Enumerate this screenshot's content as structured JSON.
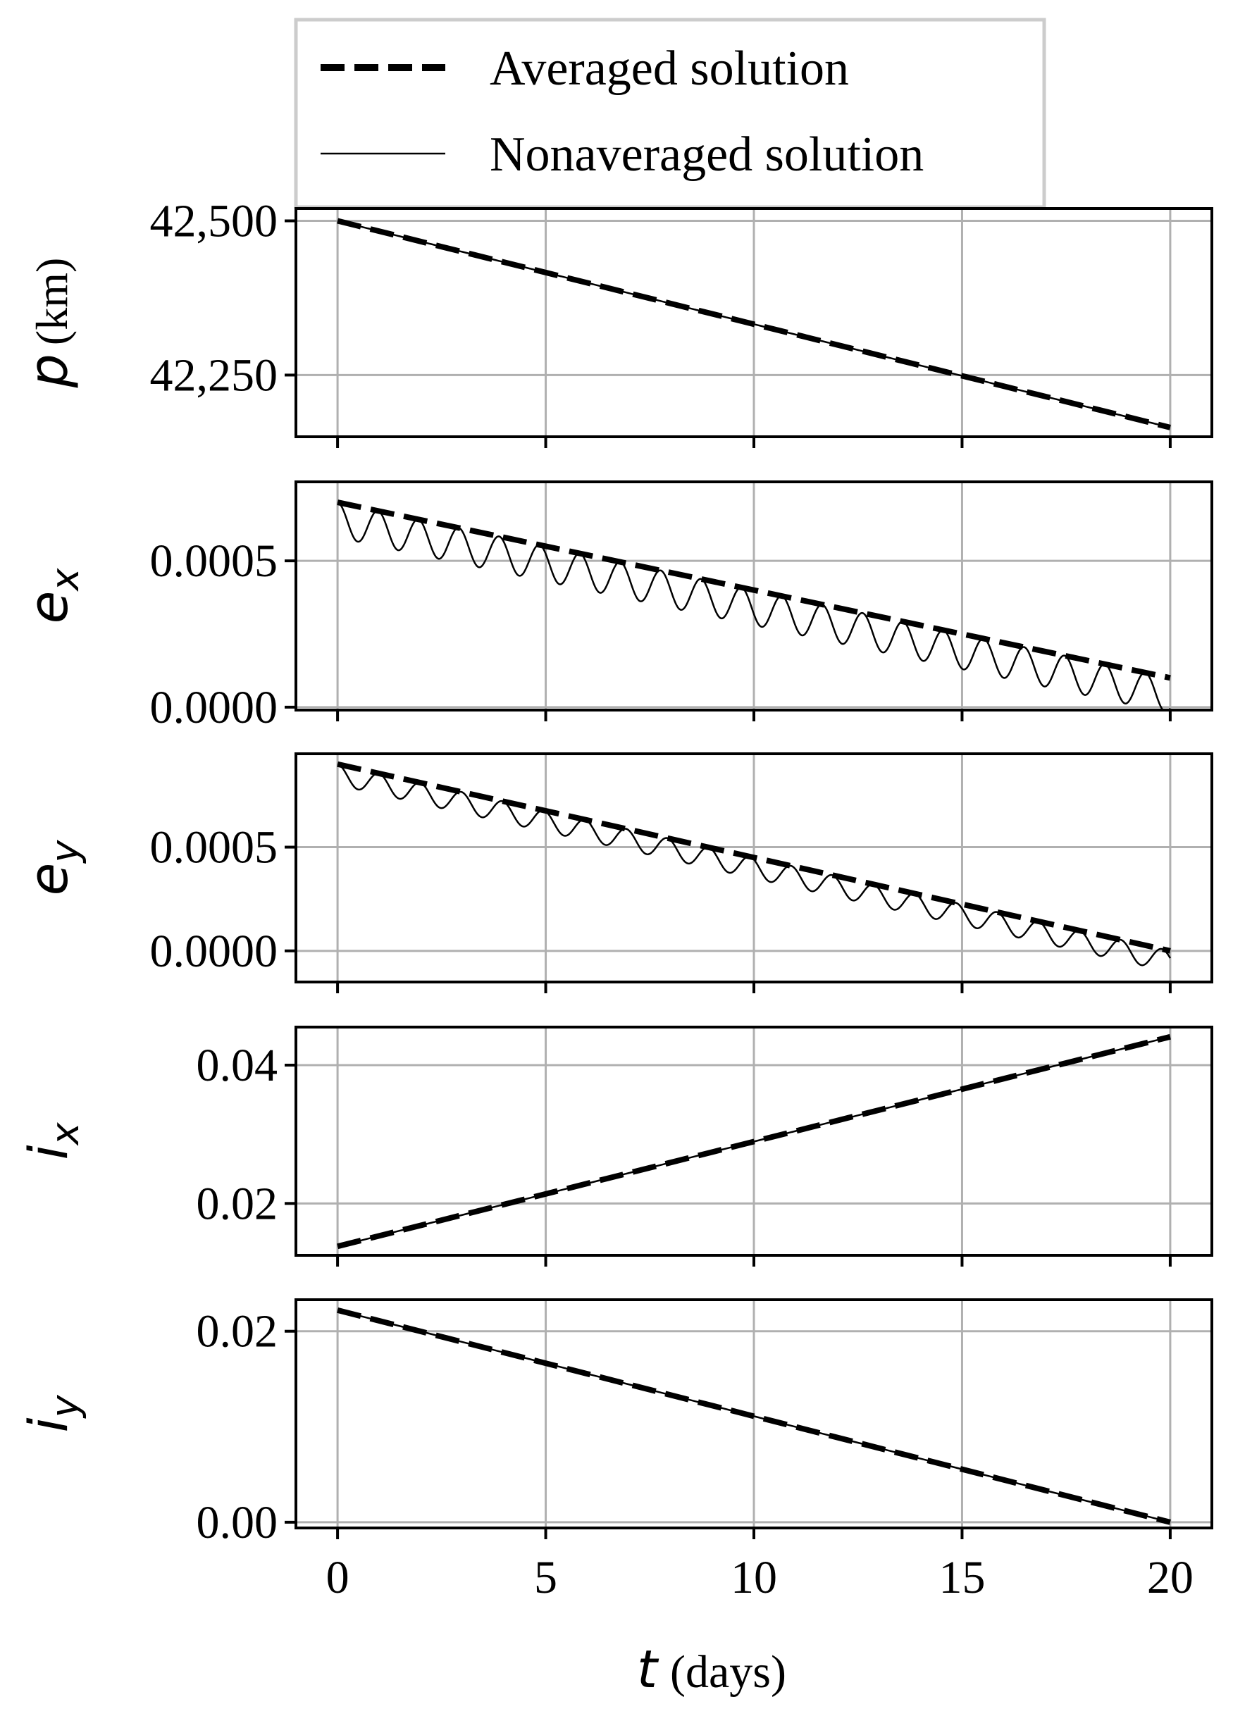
{
  "chart_data": {
    "type": "line",
    "legend": {
      "placement": "top",
      "entries": [
        {
          "label": "Averaged solution",
          "style": "dashed-thick"
        },
        {
          "label": "Nonaveraged solution",
          "style": "solid-thin"
        }
      ]
    },
    "x": {
      "symbol": "t",
      "label": "t (days)",
      "unit": "(days)",
      "range": [
        -1,
        21
      ],
      "ticks": [
        0,
        5,
        10,
        15,
        20
      ],
      "tick_labels": [
        "0",
        "5",
        "10",
        "15",
        "20"
      ]
    },
    "grid": true,
    "colors": {
      "line": "#000000",
      "grid": "#b0b0b0",
      "frame": "#000000"
    },
    "panels": [
      {
        "id": "p",
        "ylabel_symbol": "p",
        "ylabel_sub": "",
        "ylabel_unit": "(km)",
        "ylim": [
          42150,
          42520
        ],
        "yticks": [
          42250,
          42500
        ],
        "ytick_labels": [
          "42,250",
          "42,500"
        ],
        "averaged": {
          "start": 42500,
          "end": 42165
        },
        "nonaveraged": {
          "start": 42500,
          "end": 42165,
          "osc_amplitude": 0,
          "osc_period_days": 1
        }
      },
      {
        "id": "ex",
        "ylabel_symbol": "e",
        "ylabel_sub": "x",
        "ylabel_unit": "",
        "ylim": [
          -1e-05,
          0.00077
        ],
        "yticks": [
          0.0,
          0.0005
        ],
        "ytick_labels": [
          "0.0000",
          "0.0005"
        ],
        "averaged": {
          "start": 0.0007,
          "end": 0.0001
        },
        "nonaveraged": {
          "start": 0.0007,
          "end": 0.0001,
          "osc_amplitude": 6e-05,
          "osc_period_days": 0.97
        }
      },
      {
        "id": "ey",
        "ylabel_symbol": "e",
        "ylabel_sub": "y",
        "ylabel_unit": "",
        "ylim": [
          -0.00015,
          0.00095
        ],
        "yticks": [
          0.0,
          0.0005
        ],
        "ytick_labels": [
          "0.0000",
          "0.0005"
        ],
        "averaged": {
          "start": 0.0009,
          "end": 0.0
        },
        "nonaveraged": {
          "start": 0.0009,
          "end": 0.0,
          "osc_amplitude": 5e-05,
          "osc_period_days": 0.99
        }
      },
      {
        "id": "ix",
        "ylabel_symbol": "i",
        "ylabel_sub": "x",
        "ylabel_unit": "",
        "ylim": [
          0.0125,
          0.0455
        ],
        "yticks": [
          0.02,
          0.04
        ],
        "ytick_labels": [
          "0.02",
          "0.04"
        ],
        "averaged": {
          "start": 0.0138,
          "end": 0.0441
        },
        "nonaveraged": {
          "start": 0.0138,
          "end": 0.0441,
          "osc_amplitude": 0,
          "osc_period_days": 1
        }
      },
      {
        "id": "iy",
        "ylabel_symbol": "i",
        "ylabel_sub": "y",
        "ylabel_unit": "",
        "ylim": [
          -0.0006,
          0.0233
        ],
        "yticks": [
          0.0,
          0.02
        ],
        "ytick_labels": [
          "0.00",
          "0.02"
        ],
        "averaged": {
          "start": 0.0222,
          "end": 0.0
        },
        "nonaveraged": {
          "start": 0.0222,
          "end": 0.0,
          "osc_amplitude": 0,
          "osc_period_days": 1
        }
      }
    ]
  }
}
